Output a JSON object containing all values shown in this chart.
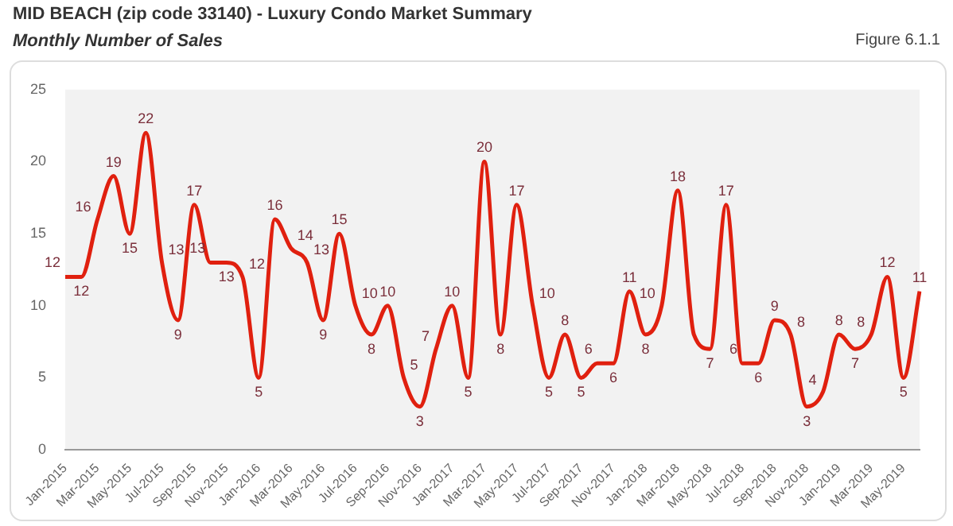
{
  "chart_data": {
    "type": "line",
    "title": "MID BEACH (zip code 33140) - Luxury Condo Market Summary",
    "subtitle": "Monthly Number of Sales",
    "annotations": [
      "Figure 6.1.1"
    ],
    "categories": [
      "Jan-2015",
      null,
      "Mar-2015",
      null,
      "May-2015",
      null,
      "Jul-2015",
      null,
      "Sep-2015",
      null,
      "Nov-2015",
      null,
      "Jan-2016",
      null,
      "Mar-2016",
      null,
      "May-2016",
      null,
      "Jul-2016",
      null,
      "Sep-2016",
      null,
      "Nov-2016",
      null,
      "Jan-2017",
      null,
      "Mar-2017",
      null,
      "May-2017",
      null,
      "Jul-2017",
      null,
      "Sep-2017",
      null,
      "Nov-2017",
      null,
      "Jan-2018",
      null,
      "Mar-2018",
      null,
      "May-2018",
      null,
      "Jul-2018",
      null,
      "Sep-2018",
      null,
      "Nov-2018",
      null,
      "Jan-2019",
      null,
      "Mar-2019",
      null,
      "May-2019",
      null
    ],
    "series": [
      {
        "color": "#e0200f",
        "values": [
          12,
          12,
          16,
          19,
          15,
          22,
          13,
          9,
          17,
          13,
          13,
          12,
          5,
          16,
          14,
          13,
          9,
          15,
          10,
          8,
          10,
          5,
          3,
          7,
          10,
          5,
          20,
          8,
          17,
          10,
          5,
          8,
          5,
          6,
          6,
          11,
          8,
          10,
          18,
          8,
          7,
          17,
          6,
          6,
          9,
          8,
          3,
          4,
          8,
          7,
          8,
          12,
          5,
          11
        ],
        "value_labels": [
          "12",
          "12",
          "16",
          "19",
          "15",
          "22",
          "13",
          "9",
          "17",
          "13",
          "13",
          "12",
          "5",
          "16",
          "14",
          "13",
          "9",
          "15",
          "10",
          "8",
          "10",
          "5",
          "3",
          "7",
          "10",
          "5",
          "20",
          "8",
          "17",
          "10",
          "5",
          "8",
          "5",
          "6",
          "6",
          "11",
          "8",
          "10",
          "18",
          null,
          "7",
          "17",
          "6",
          "6",
          "9",
          "8",
          "3",
          "4",
          "8",
          "7",
          "8",
          "12",
          "5",
          "11"
        ]
      }
    ],
    "ylim": [
      0,
      25
    ],
    "yticks": [
      0,
      5,
      10,
      15,
      20,
      25
    ],
    "grid": false,
    "legend": false,
    "marker": "none",
    "line_style": "solid"
  }
}
